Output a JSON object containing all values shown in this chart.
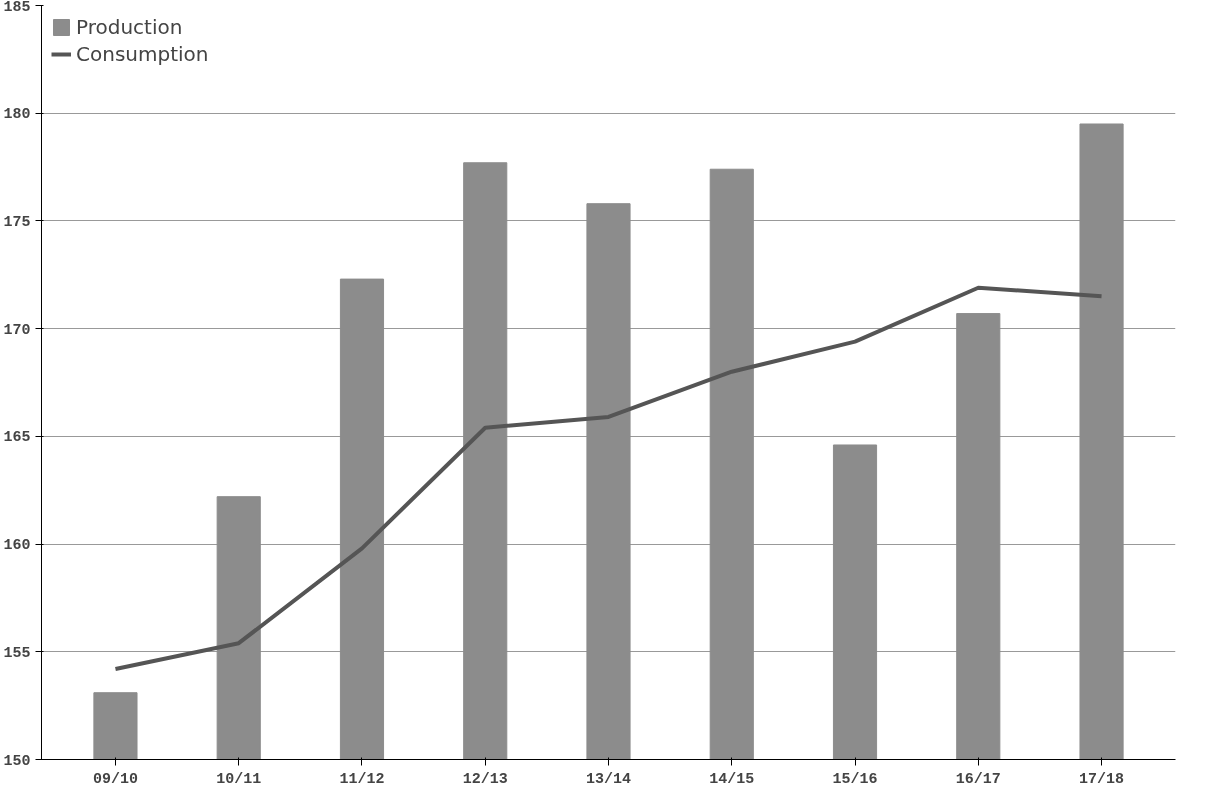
{
  "chart_data": {
    "type": "bar",
    "categories": [
      "09/10",
      "10/11",
      "11/12",
      "12/13",
      "13/14",
      "14/15",
      "15/16",
      "16/17",
      "17/18"
    ],
    "series": [
      {
        "name": "Production",
        "color": "#8c8c8c",
        "values": [
          153.1,
          162.2,
          172.3,
          177.7,
          175.8,
          177.4,
          164.6,
          170.7,
          179.5
        ]
      },
      {
        "name": "Consumption",
        "type": "line",
        "color": "#555555",
        "values": [
          154.2,
          155.4,
          159.8,
          165.4,
          165.9,
          168.0,
          169.4,
          171.9,
          171.5
        ]
      }
    ],
    "ylim": [
      150,
      185
    ],
    "yticks": [
      150,
      155,
      160,
      165,
      170,
      175,
      180,
      185
    ],
    "grid": "y",
    "legend": "top left"
  }
}
